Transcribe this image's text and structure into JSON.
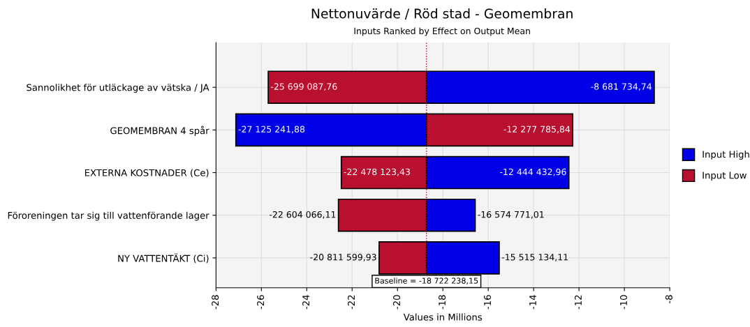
{
  "chart_data": {
    "type": "bar",
    "orientation": "horizontal",
    "title": "Nettonuvärde / Röd stad - Geomembran",
    "subtitle": "Inputs Ranked by Effect on Output Mean",
    "xlabel": "Values in Millions",
    "categories": [
      "Sannolikhet för utläckage av vätska / JA",
      "GEOMEMBRAN 4 spår",
      "EXTERNA KOSTNADER (Ce)",
      "Föroreningen tar sig till vattenförande lager",
      "NY VATTENTÄKT (Ci)"
    ],
    "series": [
      {
        "name": "Input High",
        "color": "#0000e6",
        "base": [
          -18.72223815,
          -18.72223815,
          -18.72223815,
          -18.72223815,
          -18.72223815
        ],
        "values": [
          10.04050341,
          -8.40300373,
          6.27780519,
          2.14746714,
          3.20710404
        ]
      },
      {
        "name": "Input Low",
        "color": "#b8102e",
        "base": [
          -18.72223815,
          -18.72223815,
          -18.72223815,
          -18.72223815,
          -18.72223815
        ],
        "values": [
          -6.97684961,
          6.44445231,
          -3.75588528,
          -3.88182796,
          -2.08936178
        ]
      }
    ],
    "annotations": [
      {
        "text": "-8 681 734,74",
        "x": -8.68173474,
        "y": "Sannolikhet för utläckage av vätska / JA"
      },
      {
        "text": "-27 125 241,88",
        "x": -27.12524188,
        "y": "GEOMEMBRAN 4 spår"
      },
      {
        "text": "-12 444 432,96",
        "x": -12.44443296,
        "y": "EXTERNA KOSTNADER (Ce)"
      },
      {
        "text": "-16 574 771,01",
        "x": -16.57477101,
        "y": "Föroreningen tar sig till vattenförande lager"
      },
      {
        "text": "-15 515 134,11",
        "x": -15.51513411,
        "y": "NY VATTENTÄKT (Ci)"
      },
      {
        "text": "-25 699 087,76",
        "x": -25.69908776,
        "y": "Sannolikhet för utläckage av vätska / JA"
      },
      {
        "text": "-12 277 785,84",
        "x": -12.27778584,
        "y": "GEOMEMBRAN 4 spår"
      },
      {
        "text": "-22 478 123,43",
        "x": -22.47812343,
        "y": "EXTERNA KOSTNADER (Ce)"
      },
      {
        "text": "-22 604 066,11",
        "x": -22.60406611,
        "y": "Föroreningen tar sig till vattenförande lager"
      },
      {
        "text": "-20 811 599,93",
        "x": -20.81159993,
        "y": "NY VATTENTÄKT (Ci)"
      }
    ],
    "ref_lines": [
      {
        "axis": "x",
        "value": -18.72223815,
        "label": "Baseline = -18 722 238,15",
        "color": "#c00020",
        "line_style": "dotted"
      }
    ],
    "xlim": [
      -28,
      -8
    ],
    "xticks": [
      -28,
      -26,
      -24,
      -22,
      -20,
      -18,
      -16,
      -14,
      -12,
      -10,
      -8
    ],
    "grid": true,
    "legend": "right"
  }
}
